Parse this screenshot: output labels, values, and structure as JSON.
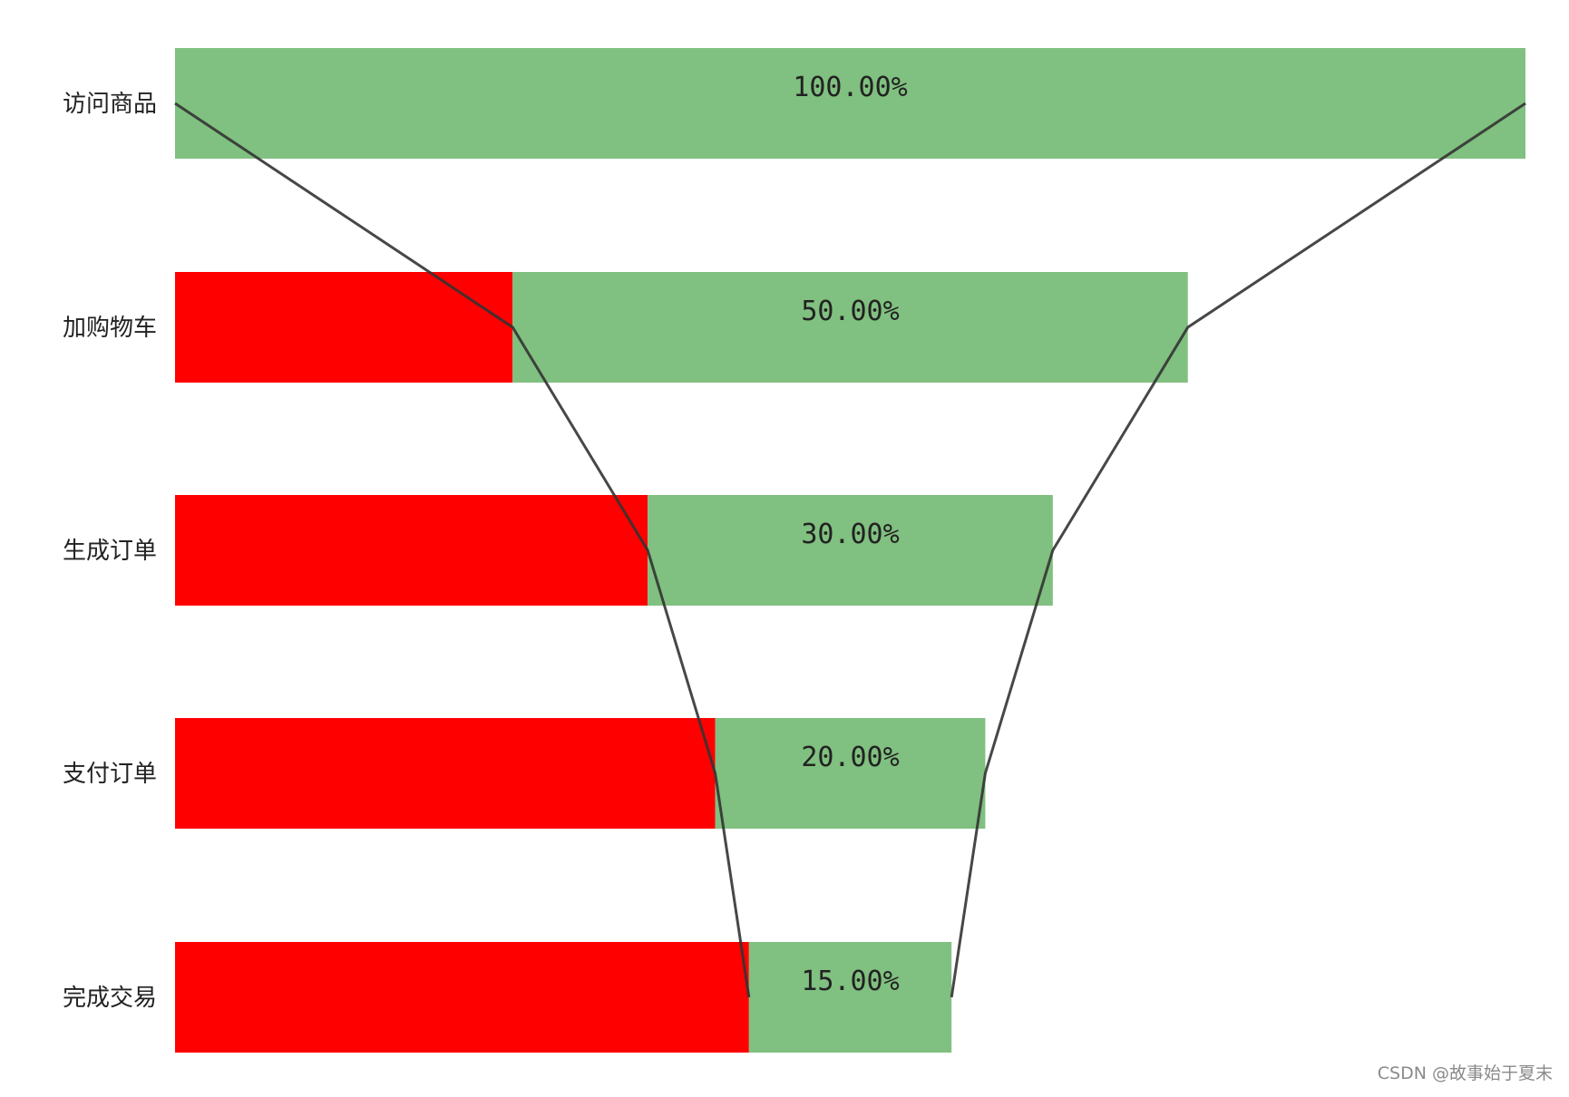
{
  "chart_data": {
    "type": "bar",
    "orientation": "horizontal",
    "style": "funnel",
    "categories": [
      "访问商品",
      "加购物车",
      "生成订单",
      "支付订单",
      "完成交易"
    ],
    "series": [
      {
        "values": [
          0,
          0.25,
          0.35,
          0.4,
          0.425
        ],
        "color": "#ff0000"
      },
      {
        "values": [
          1.0,
          0.5,
          0.3,
          0.2,
          0.15
        ],
        "color": "#80c080"
      }
    ],
    "data_labels": [
      "100.00%",
      "50.00%",
      "30.00%",
      "20.00%",
      "15.00%"
    ],
    "xlim": [
      0,
      1
    ],
    "outline_color": "#333333",
    "grid": false,
    "axes_visible": false
  },
  "watermark": "CSDN @故事始于夏末"
}
